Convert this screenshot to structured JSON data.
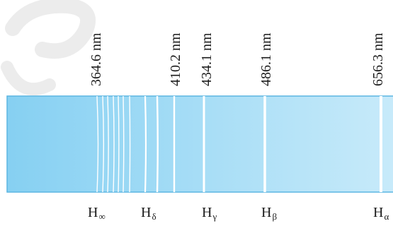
{
  "diagram": {
    "colors": {
      "band_left": "#86d0f2",
      "band_right": "#c9ebfa",
      "band_border": "#5cb6e2",
      "line": "#ffffff",
      "watermark": "#ececec"
    },
    "wavelength_labels": [
      {
        "id": "limit",
        "text": "364.6 nm"
      },
      {
        "id": "delta",
        "text": "410.2 nm"
      },
      {
        "id": "gamma",
        "text": "434.1 nm"
      },
      {
        "id": "beta",
        "text": "486.1 nm"
      },
      {
        "id": "alpha",
        "text": "656.3 nm"
      }
    ],
    "line_labels": [
      {
        "id": "limit",
        "symbol": "H",
        "subscript": "∞"
      },
      {
        "id": "delta",
        "symbol": "H",
        "subscript": "δ"
      },
      {
        "id": "gamma",
        "symbol": "H",
        "subscript": "γ"
      },
      {
        "id": "beta",
        "symbol": "H",
        "subscript": "β"
      },
      {
        "id": "alpha",
        "symbol": "H",
        "subscript": "α"
      }
    ]
  }
}
